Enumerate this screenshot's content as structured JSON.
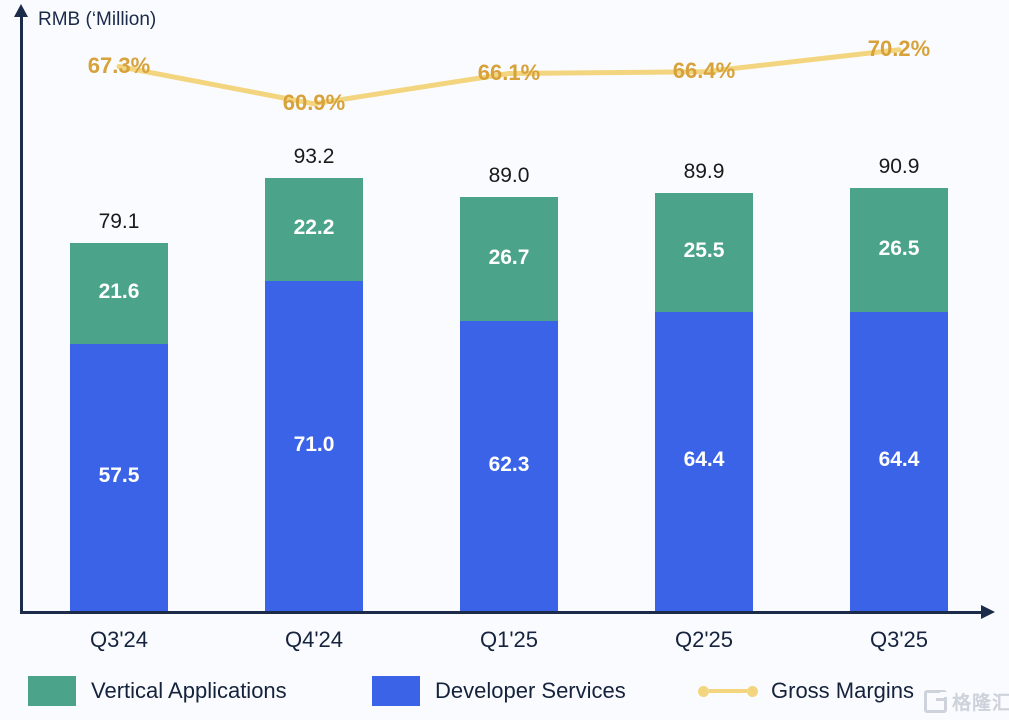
{
  "chart": {
    "y_axis_label": "RMB (‘Million)",
    "watermark": "格隆汇",
    "colors": {
      "vertical_applications": "#4ba489",
      "developer_services": "#3a63e8",
      "gross_margins_line": "#f2d57e",
      "gross_margins_text": "#d7a23b",
      "axis": "#1c2b4a",
      "tick_text": "#16233e",
      "total_text": "#191919",
      "segment_text": "#ffffff",
      "background": "#fafbfe",
      "watermark_gray": "#cdd2db"
    },
    "legend": [
      {
        "label": "Vertical Applications",
        "marker": "swatch",
        "color_key": "vertical_applications"
      },
      {
        "label": "Developer Services",
        "marker": "swatch",
        "color_key": "developer_services"
      },
      {
        "label": "Gross Margins",
        "marker": "line",
        "color_key": "gross_margins_line"
      }
    ]
  },
  "chart_data": {
    "type": "bar",
    "subtype": "stacked-bars-with-line-overlay",
    "categories": [
      "Q3'24",
      "Q4'24",
      "Q1'25",
      "Q2'25",
      "Q3'25"
    ],
    "series": [
      {
        "name": "Developer Services",
        "values": [
          57.5,
          71.0,
          62.3,
          64.4,
          64.4
        ],
        "color": "#3a63e8",
        "stack_position": "bottom"
      },
      {
        "name": "Vertical Applications",
        "values": [
          21.6,
          22.2,
          26.7,
          25.5,
          26.5
        ],
        "color": "#4ba489",
        "stack_position": "top"
      }
    ],
    "totals": [
      79.1,
      93.2,
      89.0,
      89.9,
      90.9
    ],
    "line_series": {
      "name": "Gross Margins",
      "values": [
        67.3,
        60.9,
        66.1,
        66.4,
        70.2
      ],
      "unit": "%",
      "color": "#f2d57e"
    },
    "title": "",
    "xlabel": "",
    "ylabel": "RMB (‘Million)",
    "y_axis_ticks_shown": false,
    "grid": false,
    "legend_position": "bottom"
  }
}
